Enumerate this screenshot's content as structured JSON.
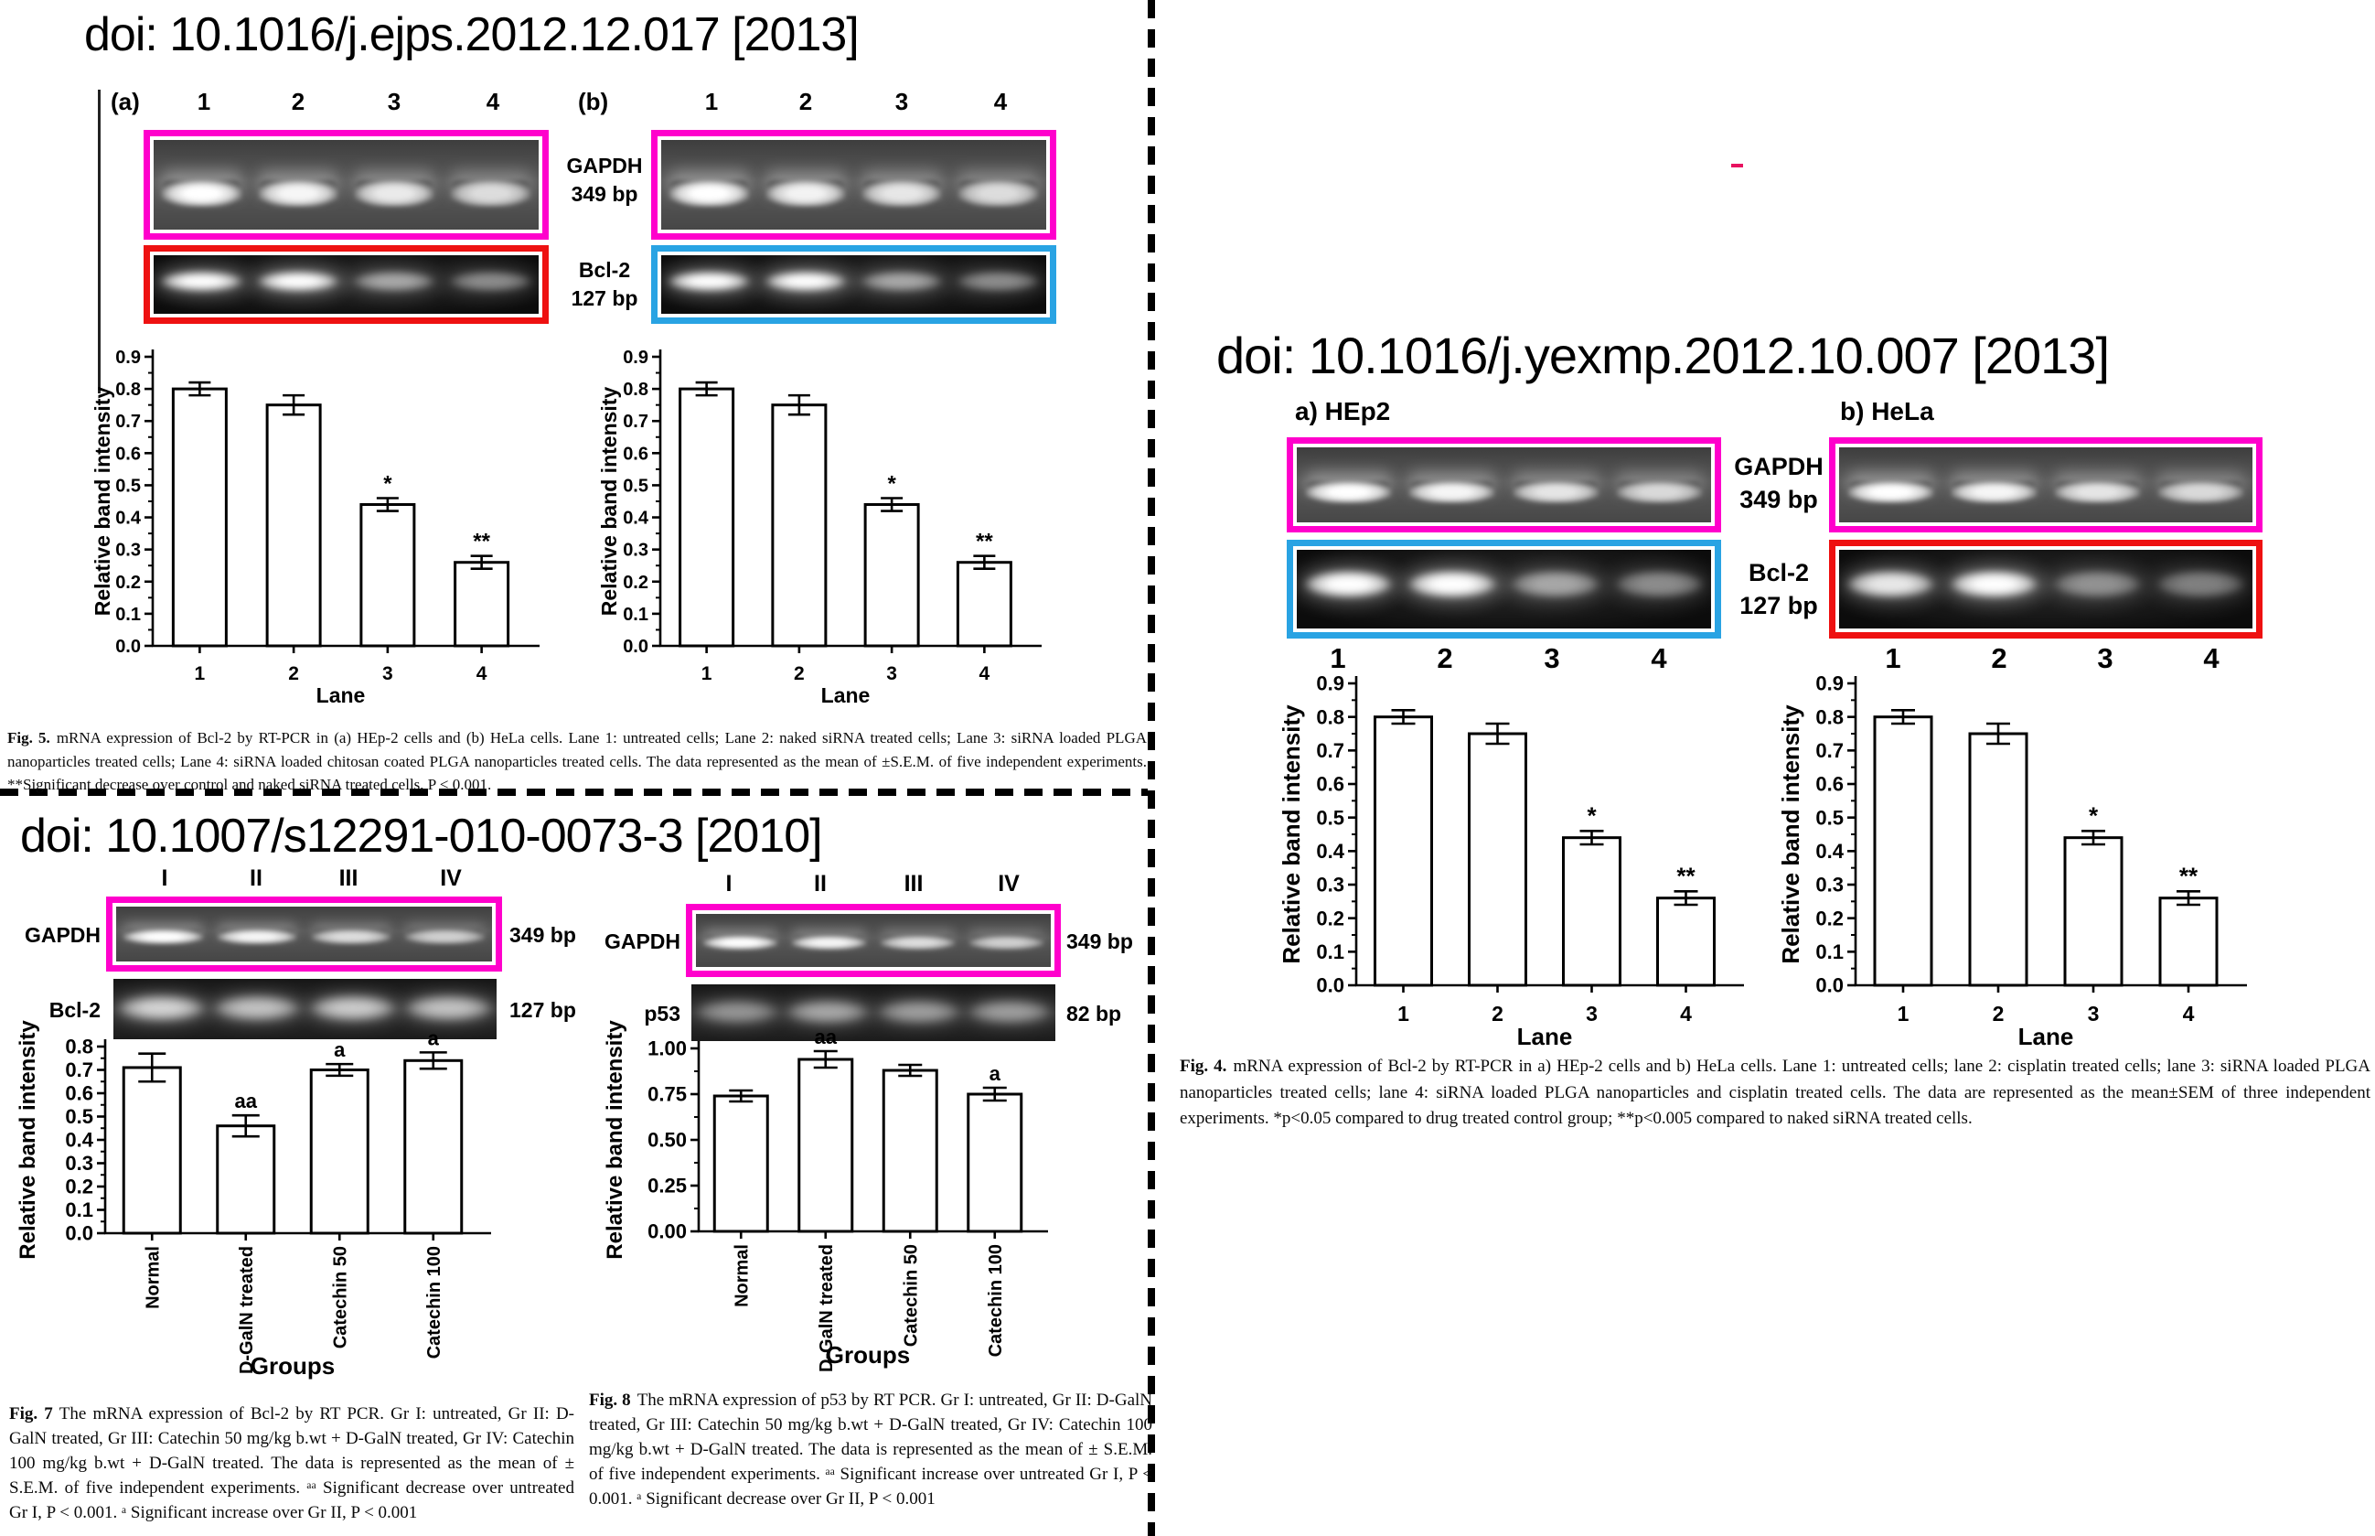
{
  "colors": {
    "magenta": "#ff00cc",
    "red": "#ee1111",
    "blue": "#29a3e3",
    "accent_dash": "#e8125f",
    "text": "#000000"
  },
  "panels": {
    "ejps": {
      "title": "doi: 10.1016/j.ejps.2012.12.017 [2013]",
      "panel_a_label": "(a)",
      "panel_b_label": "(b)",
      "lane_labels": [
        "1",
        "2",
        "3",
        "4"
      ],
      "gel_rows": [
        {
          "name": "GAPDH",
          "size": "349 bp"
        },
        {
          "name": "Bcl-2",
          "size": "127 bp"
        }
      ],
      "caption": {
        "label": "Fig. 5.",
        "text": "mRNA expression of Bcl-2 by RT-PCR in (a) HEp-2 cells and (b) HeLa cells. Lane 1: untreated cells; Lane 2: naked siRNA treated cells; Lane 3: siRNA loaded PLGA nanoparticles treated cells; Lane 4: siRNA loaded chitosan coated PLGA nanoparticles treated cells. The data represented as the mean of ±S.E.M. of five independent experiments. **Significant decrease over control and naked siRNA treated cells, P < 0.001."
      }
    },
    "s12291": {
      "title": "doi: 10.1007/s12291-010-0073-3 [2010]",
      "lane_labels": [
        "I",
        "II",
        "III",
        "IV"
      ],
      "fig7": {
        "gel_rows": [
          {
            "name": "GAPDH",
            "size": "349 bp"
          },
          {
            "name": "Bcl-2",
            "size": "127 bp"
          }
        ],
        "caption": {
          "label": "Fig. 7",
          "text": "The mRNA expression of Bcl-2 by RT PCR. Gr I: untreated, Gr II: D-GalN treated, Gr III: Catechin 50 mg/kg b.wt + D-GalN treated, Gr IV: Catechin 100 mg/kg b.wt + D-GalN treated. The data is represented as the mean of ± S.E.M. of five independent experiments. ᵃᵃ Significant decrease over untreated Gr I, P < 0.001. ᵃ Significant increase over Gr II, P < 0.001"
        }
      },
      "fig8": {
        "gel_rows": [
          {
            "name": "GAPDH",
            "size": "349 bp"
          },
          {
            "name": "p53",
            "size": "82 bp"
          }
        ],
        "caption": {
          "label": "Fig. 8",
          "text": "The mRNA expression of p53 by RT PCR. Gr I: untreated, Gr II: D-GalN treated, Gr III: Catechin 50 mg/kg b.wt + D-GalN treated, Gr IV: Catechin 100 mg/kg b.wt + D-GalN treated. The data is represented as the mean of ± S.E.M. of five independent experiments. ᵃᵃ Significant increase over untreated Gr I, P < 0.001. ᵃ Significant decrease over Gr II, P < 0.001"
        }
      }
    },
    "yexmp": {
      "title": "doi: 10.1016/j.yexmp.2012.10.007 [2013]",
      "panel_a_label": "a) HEp2",
      "panel_b_label": "b) HeLa",
      "lane_labels": [
        "1",
        "2",
        "3",
        "4"
      ],
      "gel_rows": [
        {
          "name": "GAPDH",
          "size": "349 bp"
        },
        {
          "name": "Bcl-2",
          "size": "127 bp"
        }
      ],
      "caption": {
        "label": "Fig. 4.",
        "text": "mRNA expression of Bcl-2 by RT-PCR in a) HEp-2 cells and b) HeLa cells. Lane 1: untreated cells; lane 2: cisplatin treated cells; lane 3: siRNA loaded PLGA nanoparticles treated cells; lane 4: siRNA loaded PLGA nanoparticles and cisplatin treated cells. The data are represented as the mean±SEM of three independent experiments. *p<0.05 compared to drug treated control group; **p<0.005 compared to naked siRNA treated cells."
      }
    }
  },
  "chart_data": [
    {
      "id": "ejps-chart-a",
      "type": "bar",
      "categories": [
        "1",
        "2",
        "3",
        "4"
      ],
      "values": [
        0.8,
        0.75,
        0.44,
        0.26
      ],
      "errors": [
        0.02,
        0.03,
        0.02,
        0.02
      ],
      "sig_labels": [
        "",
        "",
        "*",
        "**"
      ],
      "xlabel": "Lane",
      "ylabel": "Relative band intensity",
      "ylim": [
        0,
        0.9
      ],
      "ytick_step": 0.1,
      "ytick_decimals": 1,
      "grid": false,
      "legend": "none"
    },
    {
      "id": "ejps-chart-b",
      "type": "bar",
      "categories": [
        "1",
        "2",
        "3",
        "4"
      ],
      "values": [
        0.8,
        0.75,
        0.44,
        0.26
      ],
      "errors": [
        0.02,
        0.03,
        0.02,
        0.02
      ],
      "sig_labels": [
        "",
        "",
        "*",
        "**"
      ],
      "xlabel": "Lane",
      "ylabel": "Relative band intensity",
      "ylim": [
        0,
        0.9
      ],
      "ytick_step": 0.1,
      "ytick_decimals": 1,
      "grid": false,
      "legend": "none"
    },
    {
      "id": "fig7-chart",
      "type": "bar",
      "categories": [
        "Normal",
        "D-GalN treated",
        "Catechin 50",
        "Catechin 100"
      ],
      "values": [
        0.71,
        0.46,
        0.7,
        0.74
      ],
      "errors": [
        0.06,
        0.045,
        0.025,
        0.035
      ],
      "sig_labels": [
        "",
        "aa",
        "a",
        "a"
      ],
      "xlabel": "Groups",
      "ylabel": "Relative band intensity",
      "ylim": [
        0,
        0.8
      ],
      "ytick_step": 0.1,
      "ytick_decimals": 1,
      "grid": false,
      "legend": "none"
    },
    {
      "id": "fig8-chart",
      "type": "bar",
      "categories": [
        "Normal",
        "D-GalN treated",
        "Catechin 50",
        "Catechin 100"
      ],
      "values": [
        0.74,
        0.94,
        0.88,
        0.75
      ],
      "errors": [
        0.03,
        0.045,
        0.03,
        0.035
      ],
      "sig_labels": [
        "",
        "aa",
        "",
        "a"
      ],
      "xlabel": "Groups",
      "ylabel": "Relative band intensity",
      "ylim": [
        0,
        1.0
      ],
      "ytick_step": 0.25,
      "ytick_decimals": 2,
      "grid": false,
      "legend": "none"
    },
    {
      "id": "yexmp-chart-a",
      "type": "bar",
      "categories": [
        "1",
        "2",
        "3",
        "4"
      ],
      "values": [
        0.8,
        0.75,
        0.44,
        0.26
      ],
      "errors": [
        0.02,
        0.03,
        0.02,
        0.02
      ],
      "sig_labels": [
        "",
        "",
        "*",
        "**"
      ],
      "xlabel": "Lane",
      "ylabel": "Relative band intensity",
      "ylim": [
        0,
        0.9
      ],
      "ytick_step": 0.1,
      "ytick_decimals": 1,
      "grid": false,
      "legend": "none"
    },
    {
      "id": "yexmp-chart-b",
      "type": "bar",
      "categories": [
        "1",
        "2",
        "3",
        "4"
      ],
      "values": [
        0.8,
        0.75,
        0.44,
        0.26
      ],
      "errors": [
        0.02,
        0.03,
        0.02,
        0.02
      ],
      "sig_labels": [
        "",
        "",
        "*",
        "**"
      ],
      "xlabel": "Lane",
      "ylabel": "Relative band intensity",
      "ylim": [
        0,
        0.9
      ],
      "ytick_step": 0.1,
      "ytick_decimals": 1,
      "grid": false,
      "legend": "none"
    }
  ]
}
